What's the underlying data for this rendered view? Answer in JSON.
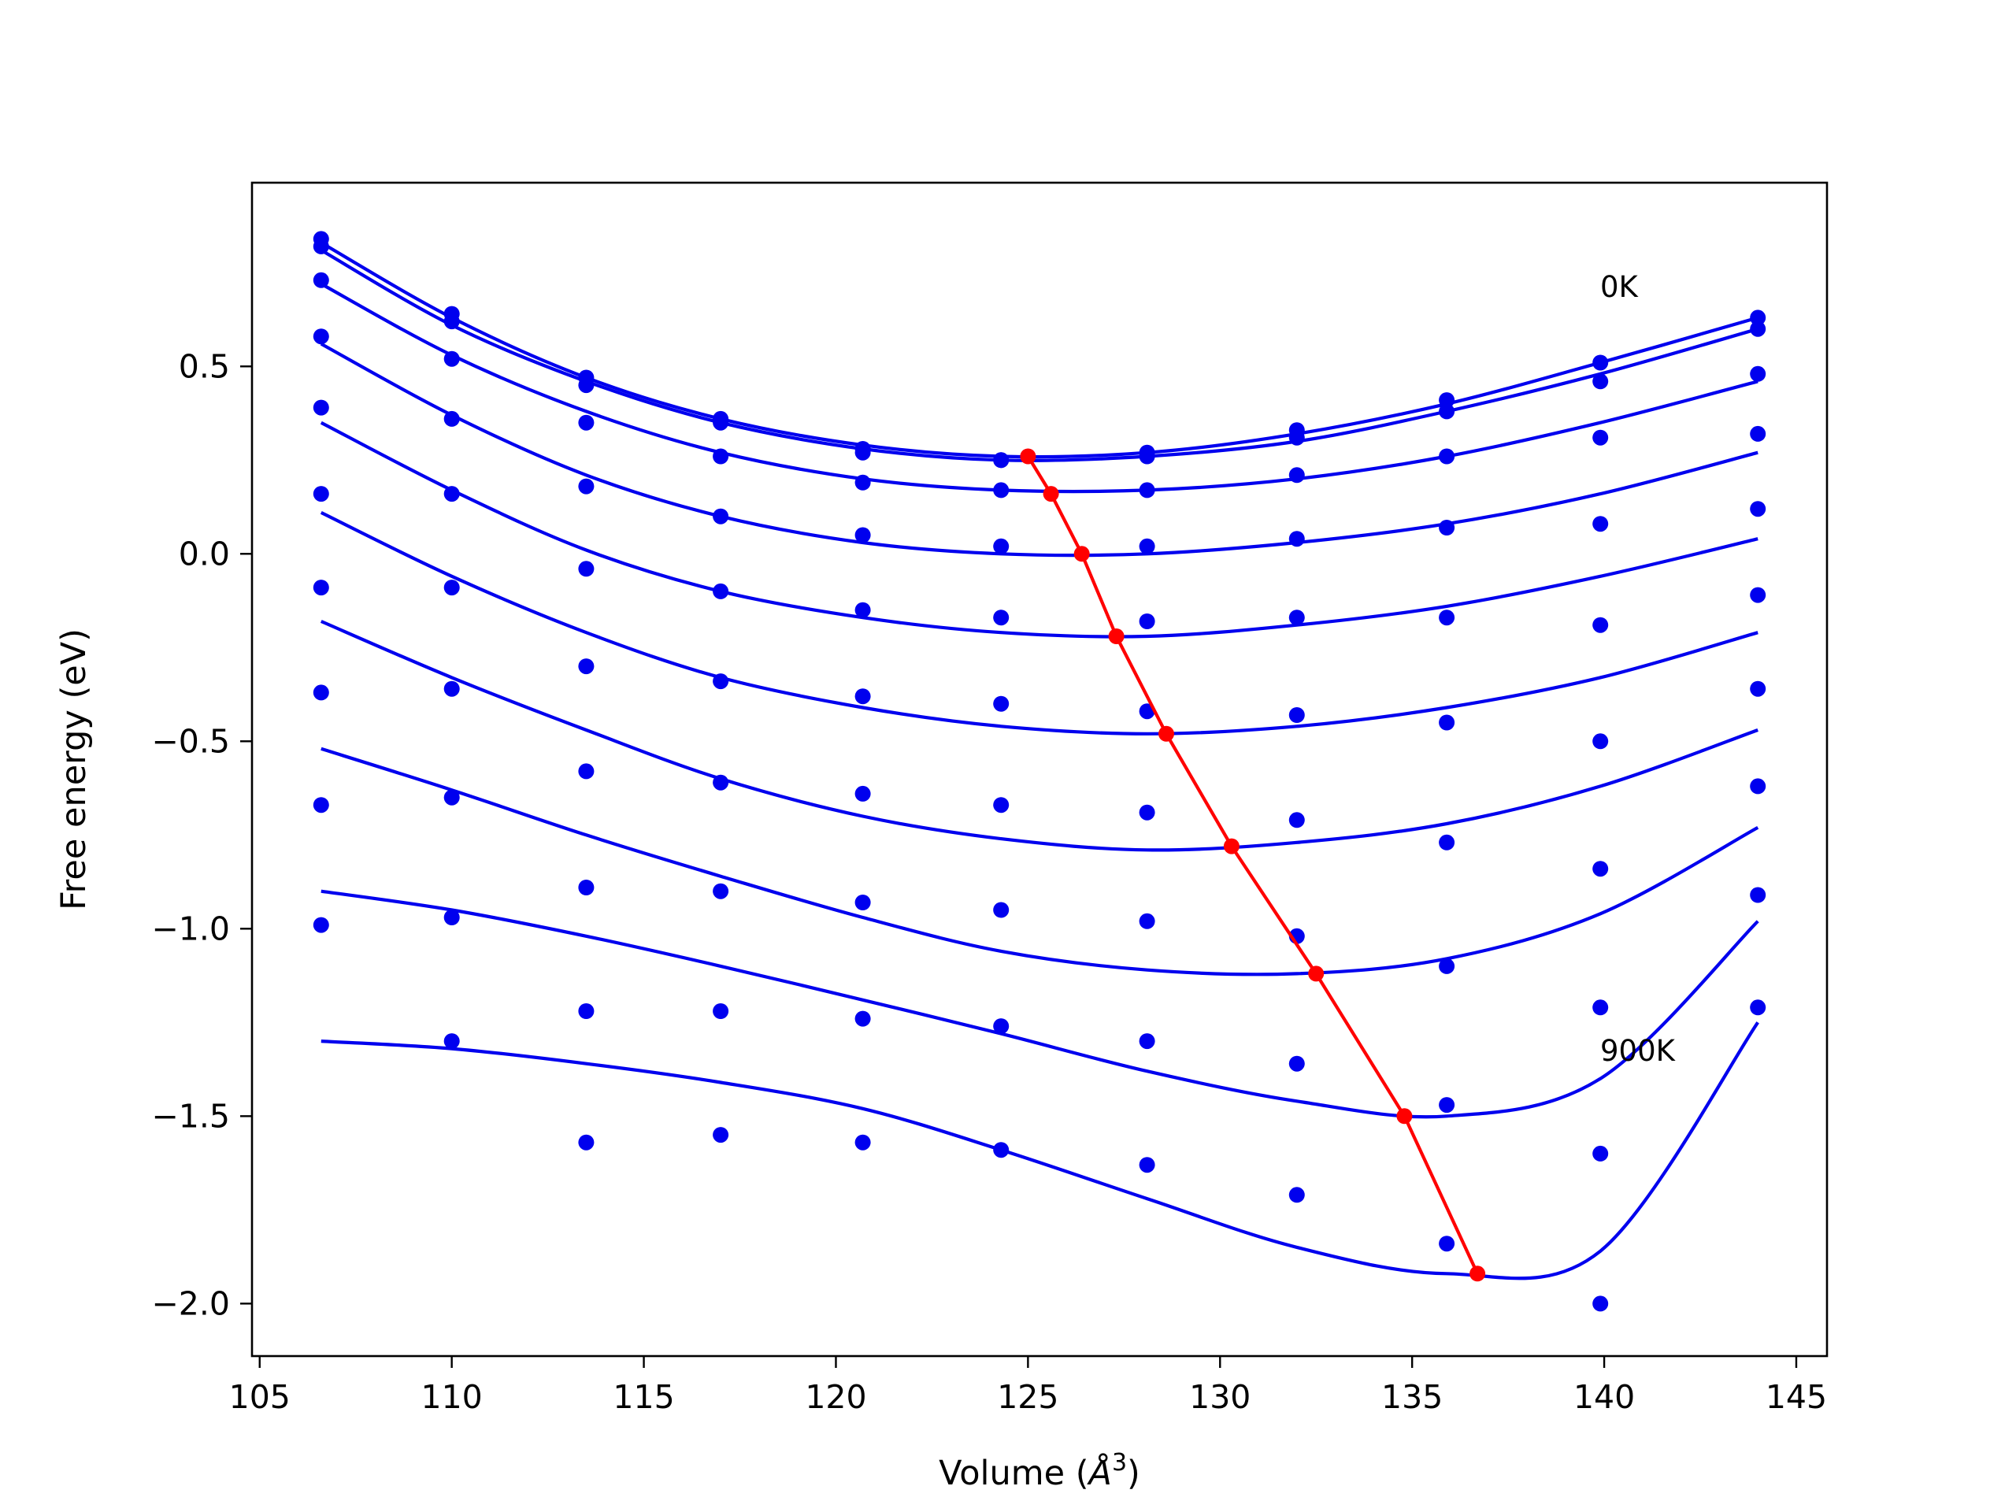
{
  "chart_data": {
    "type": "line",
    "title": "",
    "xlabel": "Volume (",
    "xlabel_symbol": "Å",
    "xlabel_exponent": "3",
    "xlabel_close": ")",
    "ylabel": "Free energy (eV)",
    "xlim": [
      104.8,
      145.8
    ],
    "ylim": [
      -2.14,
      0.99
    ],
    "xticks": [
      105,
      110,
      115,
      120,
      125,
      130,
      135,
      140,
      145
    ],
    "xtick_labels": [
      "105",
      "110",
      "115",
      "120",
      "125",
      "130",
      "135",
      "140",
      "145"
    ],
    "yticks": [
      0.5,
      0.0,
      -0.5,
      -1.0,
      -1.5,
      -2.0
    ],
    "ytick_labels": [
      "0.5",
      "0.0",
      "−0.5",
      "−1.0",
      "−1.5",
      "−2.0"
    ],
    "grid": false,
    "legend": "none",
    "colors": {
      "fit": "#0000ee",
      "points": "#0000ee",
      "minima": "#ff0000",
      "axes": "#000000"
    },
    "annotations": [
      {
        "text": "0K",
        "x": 139.9,
        "y": 0.68
      },
      {
        "text": "900K",
        "x": 139.9,
        "y": -1.37
      }
    ],
    "x": [
      106.6,
      110.0,
      113.5,
      117.0,
      120.7,
      124.3,
      128.1,
      132.0,
      135.9,
      139.9,
      144.0
    ],
    "series": [
      {
        "points": [
          0.84,
          0.64,
          0.47,
          0.36,
          0.28,
          0.25,
          0.27,
          0.33,
          0.41,
          0.51,
          0.63
        ],
        "fit": [
          [
            106.6,
            0.83
          ],
          [
            110.0,
            0.63
          ],
          [
            113.5,
            0.47
          ],
          [
            117.0,
            0.36
          ],
          [
            120.7,
            0.29
          ],
          [
            124.3,
            0.26
          ],
          [
            128.1,
            0.27
          ],
          [
            132.0,
            0.32
          ],
          [
            135.9,
            0.4
          ],
          [
            139.9,
            0.51
          ],
          [
            144.0,
            0.63
          ]
        ]
      },
      {
        "points": [
          0.82,
          0.62,
          0.45,
          0.35,
          0.27,
          0.25,
          0.26,
          0.31,
          0.38,
          0.46,
          0.6
        ],
        "fit": [
          [
            106.6,
            0.81
          ],
          [
            110.0,
            0.61
          ],
          [
            113.5,
            0.46
          ],
          [
            117.0,
            0.35
          ],
          [
            120.7,
            0.28
          ],
          [
            124.3,
            0.25
          ],
          [
            128.1,
            0.26
          ],
          [
            132.0,
            0.3
          ],
          [
            135.9,
            0.38
          ],
          [
            139.9,
            0.48
          ],
          [
            144.0,
            0.6
          ]
        ]
      },
      {
        "points": [
          0.73,
          0.52,
          0.35,
          0.26,
          0.19,
          0.17,
          0.17,
          0.21,
          0.26,
          0.31,
          0.48
        ],
        "fit": [
          [
            106.6,
            0.72
          ],
          [
            110.0,
            0.53
          ],
          [
            113.5,
            0.38
          ],
          [
            117.0,
            0.27
          ],
          [
            120.7,
            0.2
          ],
          [
            124.3,
            0.17
          ],
          [
            128.1,
            0.17
          ],
          [
            132.0,
            0.2
          ],
          [
            135.9,
            0.26
          ],
          [
            139.9,
            0.35
          ],
          [
            144.0,
            0.46
          ]
        ]
      },
      {
        "points": [
          0.58,
          0.36,
          0.18,
          0.1,
          0.05,
          0.02,
          0.02,
          0.04,
          0.07,
          0.08,
          0.32
        ],
        "fit": [
          [
            106.6,
            0.56
          ],
          [
            110.0,
            0.37
          ],
          [
            113.5,
            0.21
          ],
          [
            117.0,
            0.1
          ],
          [
            120.7,
            0.03
          ],
          [
            124.3,
            0.0
          ],
          [
            128.1,
            0.0
          ],
          [
            132.0,
            0.03
          ],
          [
            135.9,
            0.08
          ],
          [
            139.9,
            0.16
          ],
          [
            144.0,
            0.27
          ]
        ]
      },
      {
        "points": [
          0.39,
          0.16,
          -0.04,
          -0.1,
          -0.15,
          -0.17,
          -0.18,
          -0.17,
          -0.17,
          -0.19,
          0.12
        ],
        "fit": [
          [
            106.6,
            0.35
          ],
          [
            110.0,
            0.17
          ],
          [
            113.5,
            0.01
          ],
          [
            117.0,
            -0.1
          ],
          [
            120.7,
            -0.17
          ],
          [
            124.3,
            -0.21
          ],
          [
            128.1,
            -0.22
          ],
          [
            132.0,
            -0.19
          ],
          [
            135.9,
            -0.14
          ],
          [
            139.9,
            -0.06
          ],
          [
            144.0,
            0.04
          ]
        ]
      },
      {
        "points": [
          0.16,
          -0.09,
          -0.3,
          -0.34,
          -0.38,
          -0.4,
          -0.42,
          -0.43,
          -0.45,
          -0.5,
          -0.11
        ],
        "fit": [
          [
            106.6,
            0.11
          ],
          [
            110.0,
            -0.06
          ],
          [
            113.5,
            -0.21
          ],
          [
            117.0,
            -0.33
          ],
          [
            120.7,
            -0.41
          ],
          [
            124.3,
            -0.46
          ],
          [
            128.1,
            -0.48
          ],
          [
            132.0,
            -0.46
          ],
          [
            135.9,
            -0.41
          ],
          [
            139.9,
            -0.33
          ],
          [
            144.0,
            -0.21
          ]
        ]
      },
      {
        "points": [
          -0.09,
          -0.36,
          -0.58,
          -0.61,
          -0.64,
          -0.67,
          -0.69,
          -0.71,
          -0.77,
          -0.84,
          -0.36
        ],
        "fit": [
          [
            106.6,
            -0.18
          ],
          [
            110.0,
            -0.33
          ],
          [
            113.5,
            -0.47
          ],
          [
            117.0,
            -0.6
          ],
          [
            120.7,
            -0.7
          ],
          [
            124.3,
            -0.76
          ],
          [
            128.1,
            -0.79
          ],
          [
            132.0,
            -0.77
          ],
          [
            135.9,
            -0.72
          ],
          [
            139.9,
            -0.62
          ],
          [
            144.0,
            -0.47
          ]
        ]
      },
      {
        "points": [
          -0.37,
          -0.65,
          -0.89,
          -0.9,
          -0.93,
          -0.95,
          -0.98,
          -1.02,
          -1.1,
          -1.21,
          -0.62
        ],
        "fit": [
          [
            106.6,
            -0.52
          ],
          [
            110.0,
            -0.63
          ],
          [
            113.5,
            -0.75
          ],
          [
            117.0,
            -0.86
          ],
          [
            120.7,
            -0.97
          ],
          [
            124.3,
            -1.06
          ],
          [
            128.1,
            -1.11
          ],
          [
            132.0,
            -1.12
          ],
          [
            135.9,
            -1.08
          ],
          [
            139.9,
            -0.96
          ],
          [
            144.0,
            -0.73
          ]
        ]
      },
      {
        "points": [
          -0.67,
          -0.97,
          -1.22,
          -1.22,
          -1.24,
          -1.26,
          -1.3,
          -1.36,
          -1.47,
          -1.6,
          -0.91
        ],
        "fit": [
          [
            106.6,
            -0.9
          ],
          [
            110.0,
            -0.95
          ],
          [
            113.5,
            -1.02
          ],
          [
            117.0,
            -1.1
          ],
          [
            120.7,
            -1.19
          ],
          [
            124.3,
            -1.28
          ],
          [
            128.1,
            -1.38
          ],
          [
            132.0,
            -1.46
          ],
          [
            135.9,
            -1.5
          ],
          [
            139.9,
            -1.4
          ],
          [
            144.0,
            -0.98
          ]
        ]
      },
      {
        "points": [
          -0.99,
          -1.3,
          -1.57,
          -1.55,
          -1.57,
          -1.59,
          -1.63,
          -1.71,
          -1.84,
          -2.0,
          -1.21
        ],
        "fit": [
          [
            106.6,
            -1.3
          ],
          [
            110.0,
            -1.32
          ],
          [
            113.5,
            -1.36
          ],
          [
            117.0,
            -1.41
          ],
          [
            120.7,
            -1.48
          ],
          [
            124.3,
            -1.59
          ],
          [
            128.1,
            -1.72
          ],
          [
            132.0,
            -1.85
          ],
          [
            135.9,
            -1.92
          ],
          [
            139.9,
            -1.86
          ],
          [
            144.0,
            -1.25
          ]
        ]
      }
    ],
    "minima": {
      "x": [
        125.0,
        125.6,
        126.4,
        127.3,
        128.6,
        130.3,
        132.5,
        134.8,
        136.7
      ],
      "y": [
        0.26,
        0.16,
        0.0,
        -0.22,
        -0.48,
        -0.78,
        -1.12,
        -1.5,
        -1.92
      ]
    }
  }
}
